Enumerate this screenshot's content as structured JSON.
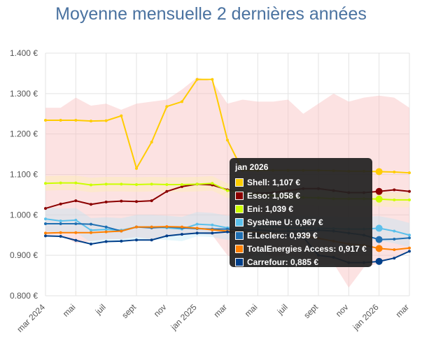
{
  "chart_data": {
    "type": "line",
    "title": "Moyenne mensuelle 2 dernières années",
    "y_ticks": [
      "0.800 €",
      "0.900 €",
      "1.000 €",
      "1.100 €",
      "1.200 €",
      "1.300 €",
      "1.400 €"
    ],
    "ylim": [
      0.8,
      1.4
    ],
    "x_ticks": [
      "mar 2024",
      "mai",
      "juil",
      "sept",
      "nov",
      "jan 2025",
      "mar",
      "mai",
      "juil",
      "sept",
      "nov",
      "jan 2026",
      "mar"
    ],
    "xlim": [
      0,
      24
    ],
    "grid": true,
    "band": {
      "upper": [
        1.265,
        1.265,
        1.29,
        1.27,
        1.275,
        1.26,
        1.275,
        1.28,
        1.285,
        1.31,
        1.34,
        1.33,
        1.275,
        1.285,
        1.28,
        1.28,
        1.285,
        1.25,
        1.275,
        1.3,
        1.28,
        1.29,
        1.295,
        1.29,
        1.265
      ],
      "lower": [
        0.95,
        0.95,
        0.93,
        0.935,
        0.94,
        0.94,
        0.945,
        0.94,
        0.95,
        0.95,
        0.955,
        0.95,
        0.9,
        0.88,
        0.91,
        0.895,
        0.9,
        0.89,
        0.875,
        0.88,
        0.82,
        0.87,
        0.88,
        0.895,
        0.91
      ]
    },
    "series": [
      {
        "name": "Shell",
        "color": "#ffcc00",
        "values": [
          1.234,
          1.234,
          1.234,
          1.232,
          1.233,
          1.245,
          1.115,
          1.18,
          1.268,
          1.28,
          1.335,
          1.335,
          1.185,
          1.11,
          1.11,
          1.11,
          1.11,
          1.11,
          1.11,
          1.109,
          1.108,
          1.108,
          1.107,
          1.106,
          1.104
        ]
      },
      {
        "name": "Esso",
        "color": "#8b0000",
        "values": [
          1.016,
          1.027,
          1.035,
          1.026,
          1.032,
          1.034,
          1.033,
          1.035,
          1.058,
          1.07,
          1.076,
          1.074,
          1.062,
          1.055,
          1.053,
          1.055,
          1.06,
          1.065,
          1.065,
          1.06,
          1.055,
          1.055,
          1.058,
          1.062,
          1.058
        ]
      },
      {
        "name": "Eni",
        "color": "#ccff00",
        "values": [
          1.078,
          1.079,
          1.079,
          1.074,
          1.076,
          1.076,
          1.075,
          1.076,
          1.075,
          1.075,
          1.076,
          1.078,
          1.06,
          1.055,
          1.05,
          1.048,
          1.045,
          1.043,
          1.042,
          1.04,
          1.04,
          1.04,
          1.039,
          1.037,
          1.037
        ]
      },
      {
        "name": "Système U",
        "color": "#5bc0eb",
        "values": [
          0.99,
          0.985,
          0.987,
          0.962,
          0.964,
          0.962,
          0.97,
          0.97,
          0.968,
          0.965,
          0.977,
          0.975,
          0.968,
          0.972,
          0.97,
          0.97,
          0.968,
          0.968,
          0.967,
          0.966,
          0.965,
          0.965,
          0.967,
          0.96,
          0.95
        ]
      },
      {
        "name": "E.Leclerc",
        "color": "#1f6fb2",
        "values": [
          0.978,
          0.978,
          0.978,
          0.977,
          0.97,
          0.96,
          0.97,
          0.968,
          0.97,
          0.968,
          0.966,
          0.965,
          0.965,
          0.963,
          0.963,
          0.96,
          0.96,
          0.96,
          0.962,
          0.96,
          0.955,
          0.95,
          0.939,
          0.94,
          0.943
        ]
      },
      {
        "name": "TotalEnergies Access",
        "color": "#ff8000",
        "values": [
          0.955,
          0.956,
          0.956,
          0.956,
          0.958,
          0.96,
          0.97,
          0.97,
          0.971,
          0.97,
          0.967,
          0.963,
          0.96,
          0.958,
          0.955,
          0.952,
          0.95,
          0.948,
          0.942,
          0.935,
          0.928,
          0.925,
          0.917,
          0.914,
          0.918
        ]
      },
      {
        "name": "Carrefour",
        "color": "#003f8a",
        "values": [
          0.948,
          0.947,
          0.937,
          0.928,
          0.934,
          0.935,
          0.938,
          0.938,
          0.948,
          0.952,
          0.955,
          0.955,
          0.958,
          0.954,
          0.952,
          0.948,
          0.95,
          0.945,
          0.9,
          0.895,
          0.882,
          0.882,
          0.885,
          0.893,
          0.91
        ]
      }
    ]
  },
  "tooltip": {
    "title": "jan 2026",
    "items": [
      {
        "label": "Shell: 1,107 €",
        "color": "#ffcc00"
      },
      {
        "label": "Esso: 1,058 €",
        "color": "#8b0000"
      },
      {
        "label": "Eni: 1,039 €",
        "color": "#ccff00"
      },
      {
        "label": "Système U: 0,967 €",
        "color": "#5bc0eb"
      },
      {
        "label": "E.Leclerc: 0,939 €",
        "color": "#1f6fb2"
      },
      {
        "label": "TotalEnergies Access: 0,917 €",
        "color": "#ff8000"
      },
      {
        "label": "Carrefour: 0,885 €",
        "color": "#003f8a"
      }
    ]
  }
}
